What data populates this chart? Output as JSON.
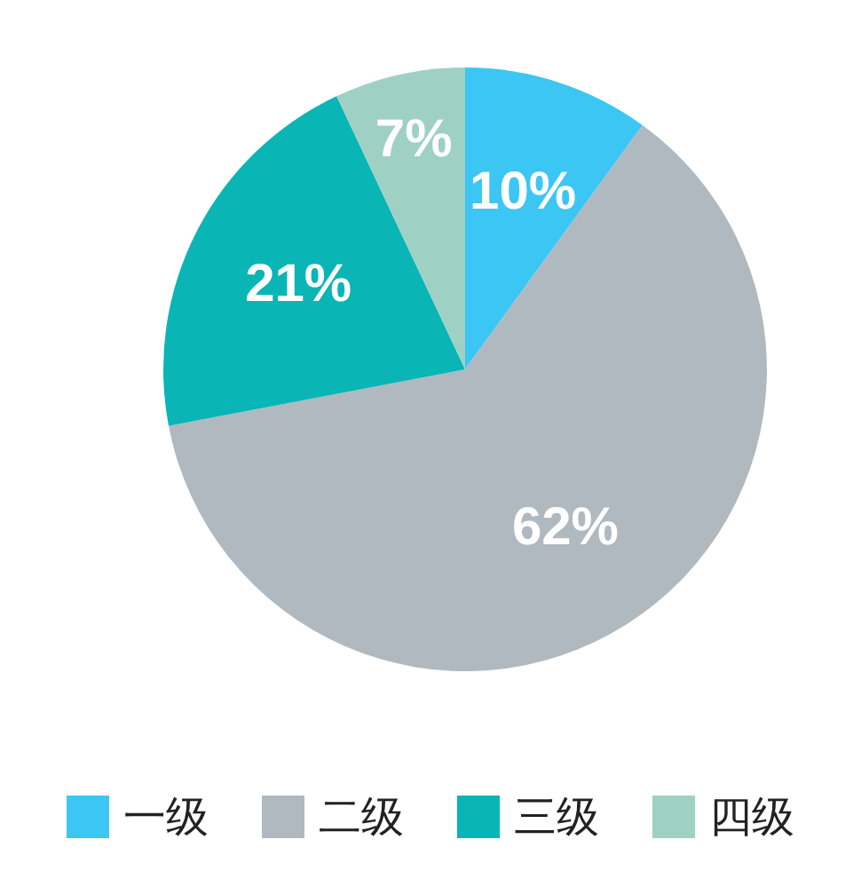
{
  "chart_data": {
    "type": "pie",
    "categories": [
      "一级",
      "二级",
      "三级",
      "四级"
    ],
    "values": [
      10,
      62,
      21,
      7
    ],
    "colors": [
      "#3cc6f4",
      "#b0b9bf",
      "#0ab5b5",
      "#9fd0c4"
    ],
    "value_labels": [
      "10%",
      "62%",
      "21%",
      "7%"
    ],
    "legend": "bottom"
  }
}
